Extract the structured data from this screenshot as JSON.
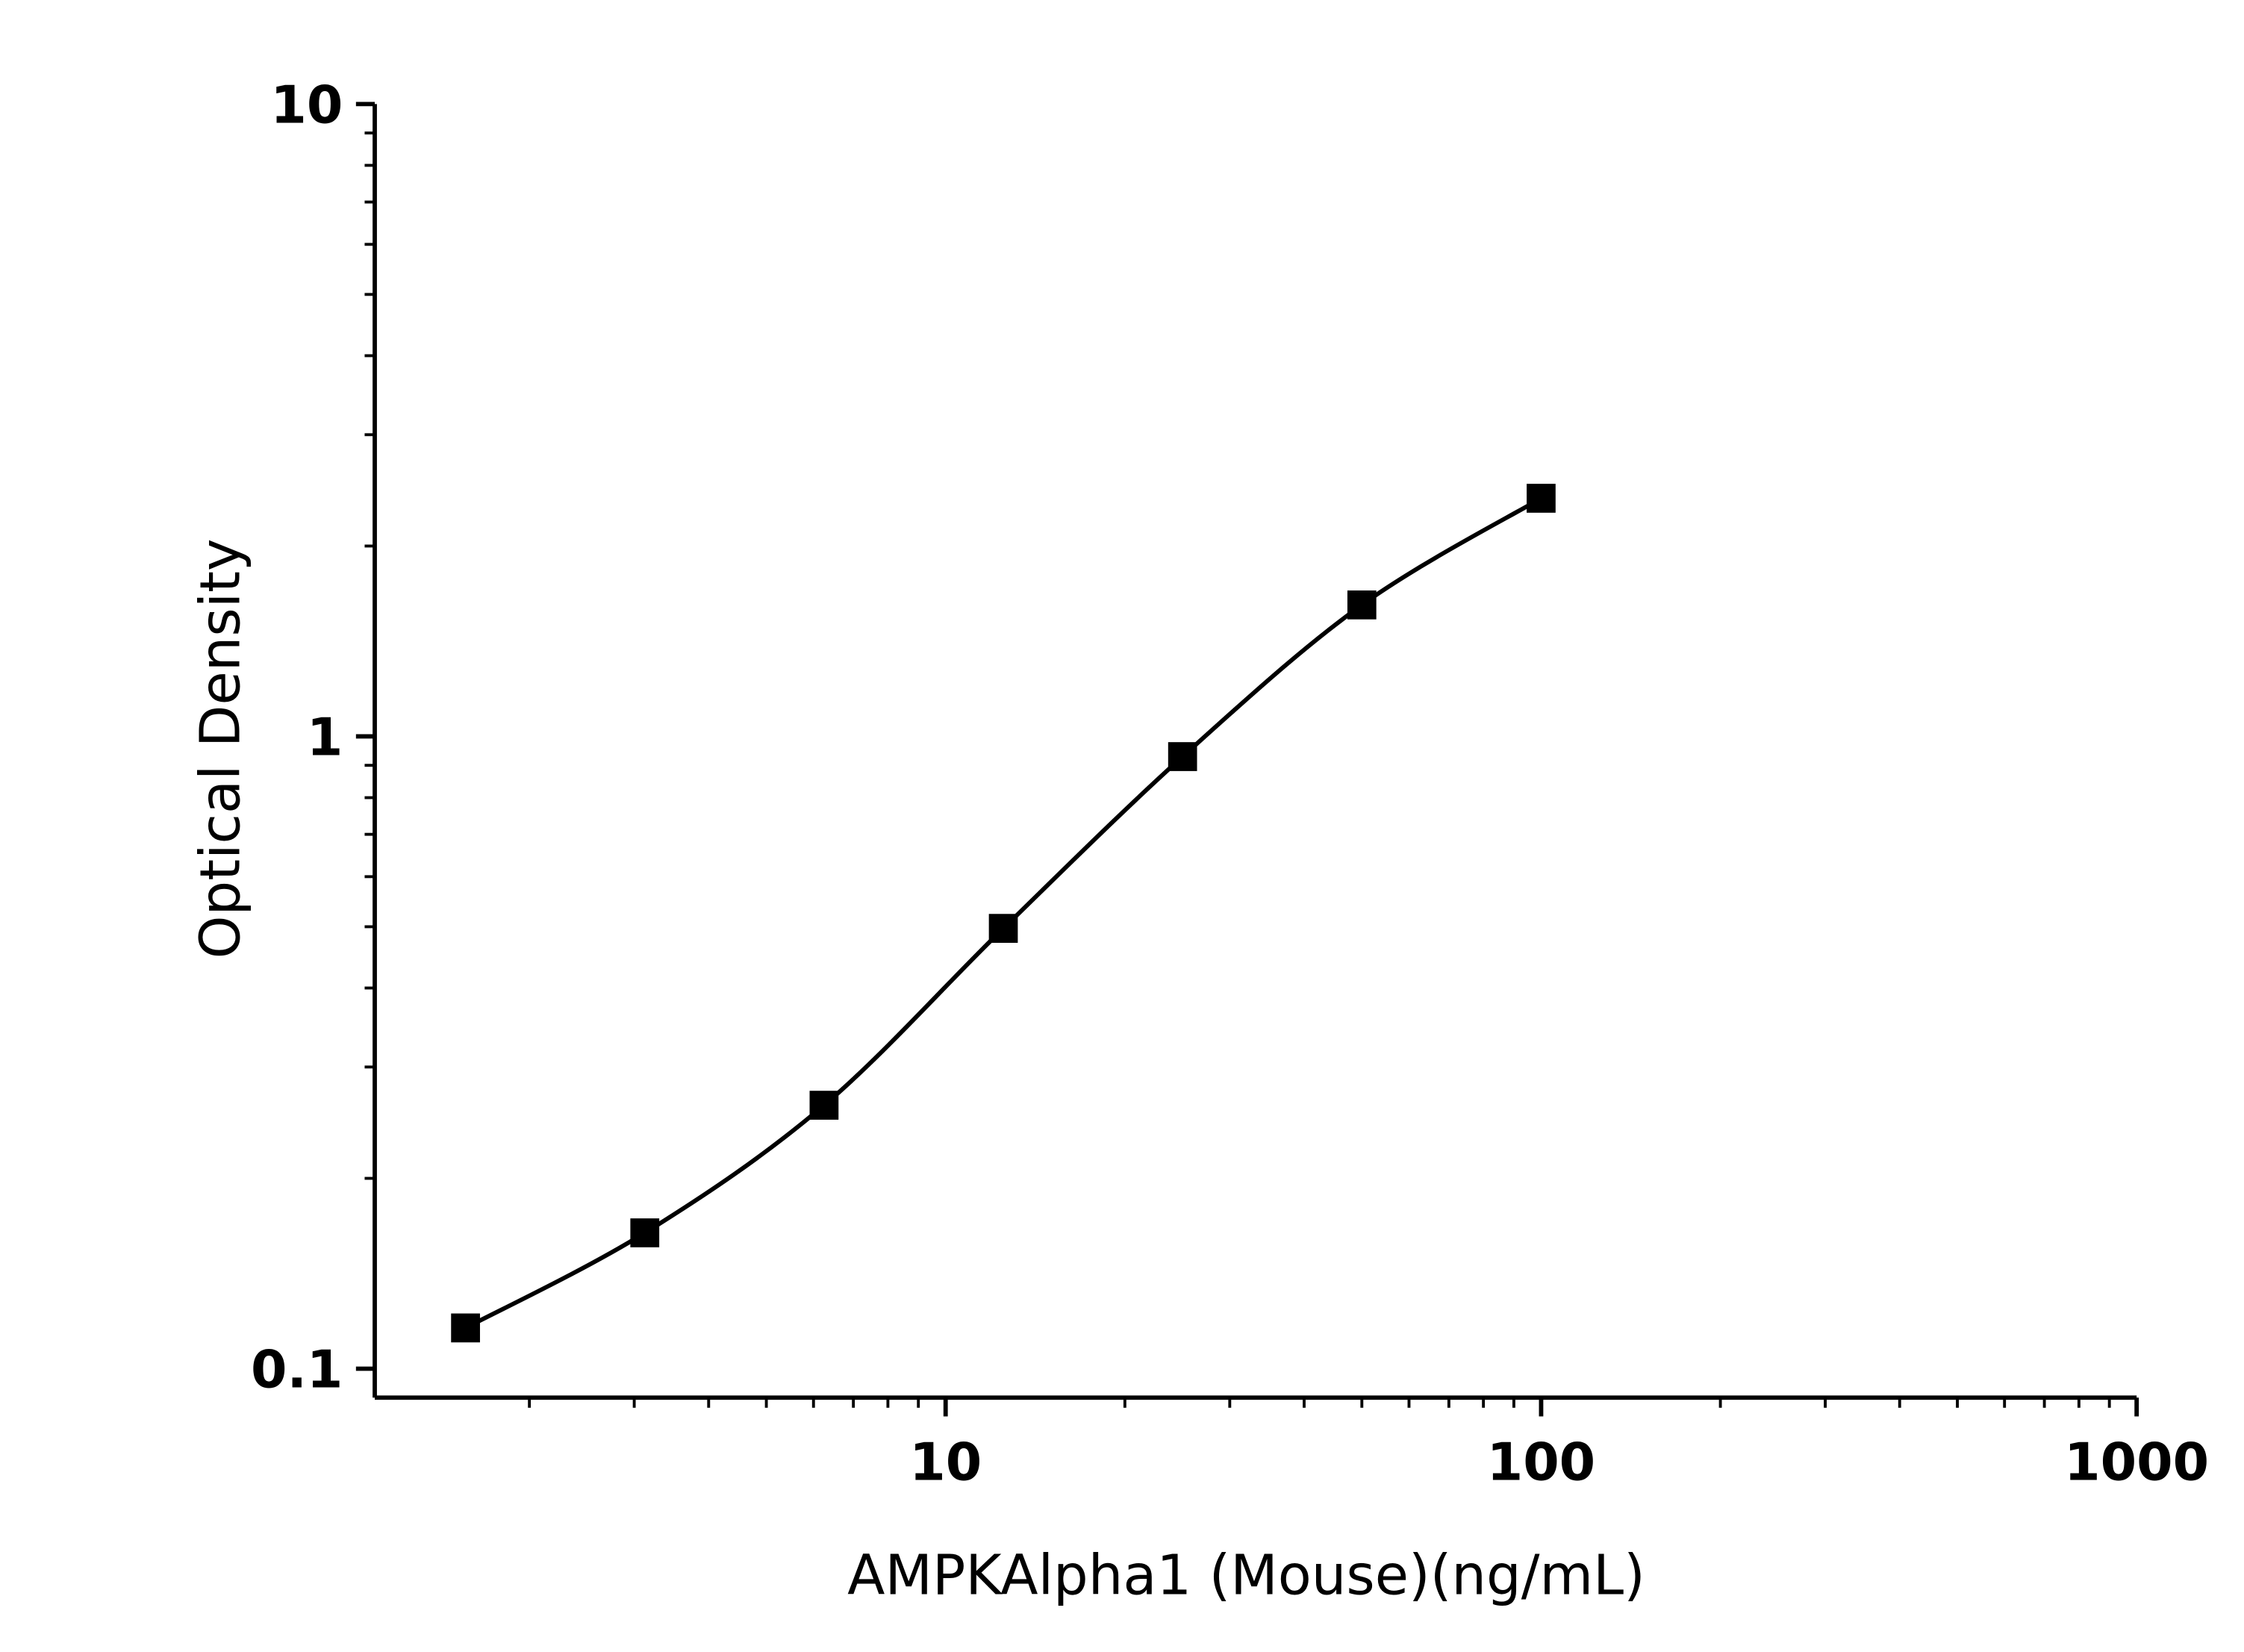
{
  "chart_data": {
    "type": "scatter",
    "x_label": "AMPKAlpha1 (Mouse)(ng/mL)",
    "y_label": "Optical Density",
    "x": [
      1.5625,
      3.125,
      6.25,
      12.5,
      25,
      50,
      100
    ],
    "series": [
      {
        "color": "#000000",
        "values": [
          0.116,
          0.164,
          0.261,
          0.497,
          0.929,
          1.614,
          2.38
        ]
      }
    ],
    "xlim": [
      1.1,
      1000
    ],
    "ylim": [
      0.09,
      10
    ],
    "xticks": [
      10,
      100,
      1000
    ],
    "yticks": [
      0.1,
      1,
      10
    ],
    "xscale": "log",
    "yscale": "log",
    "grid": false,
    "fit_line": true
  }
}
